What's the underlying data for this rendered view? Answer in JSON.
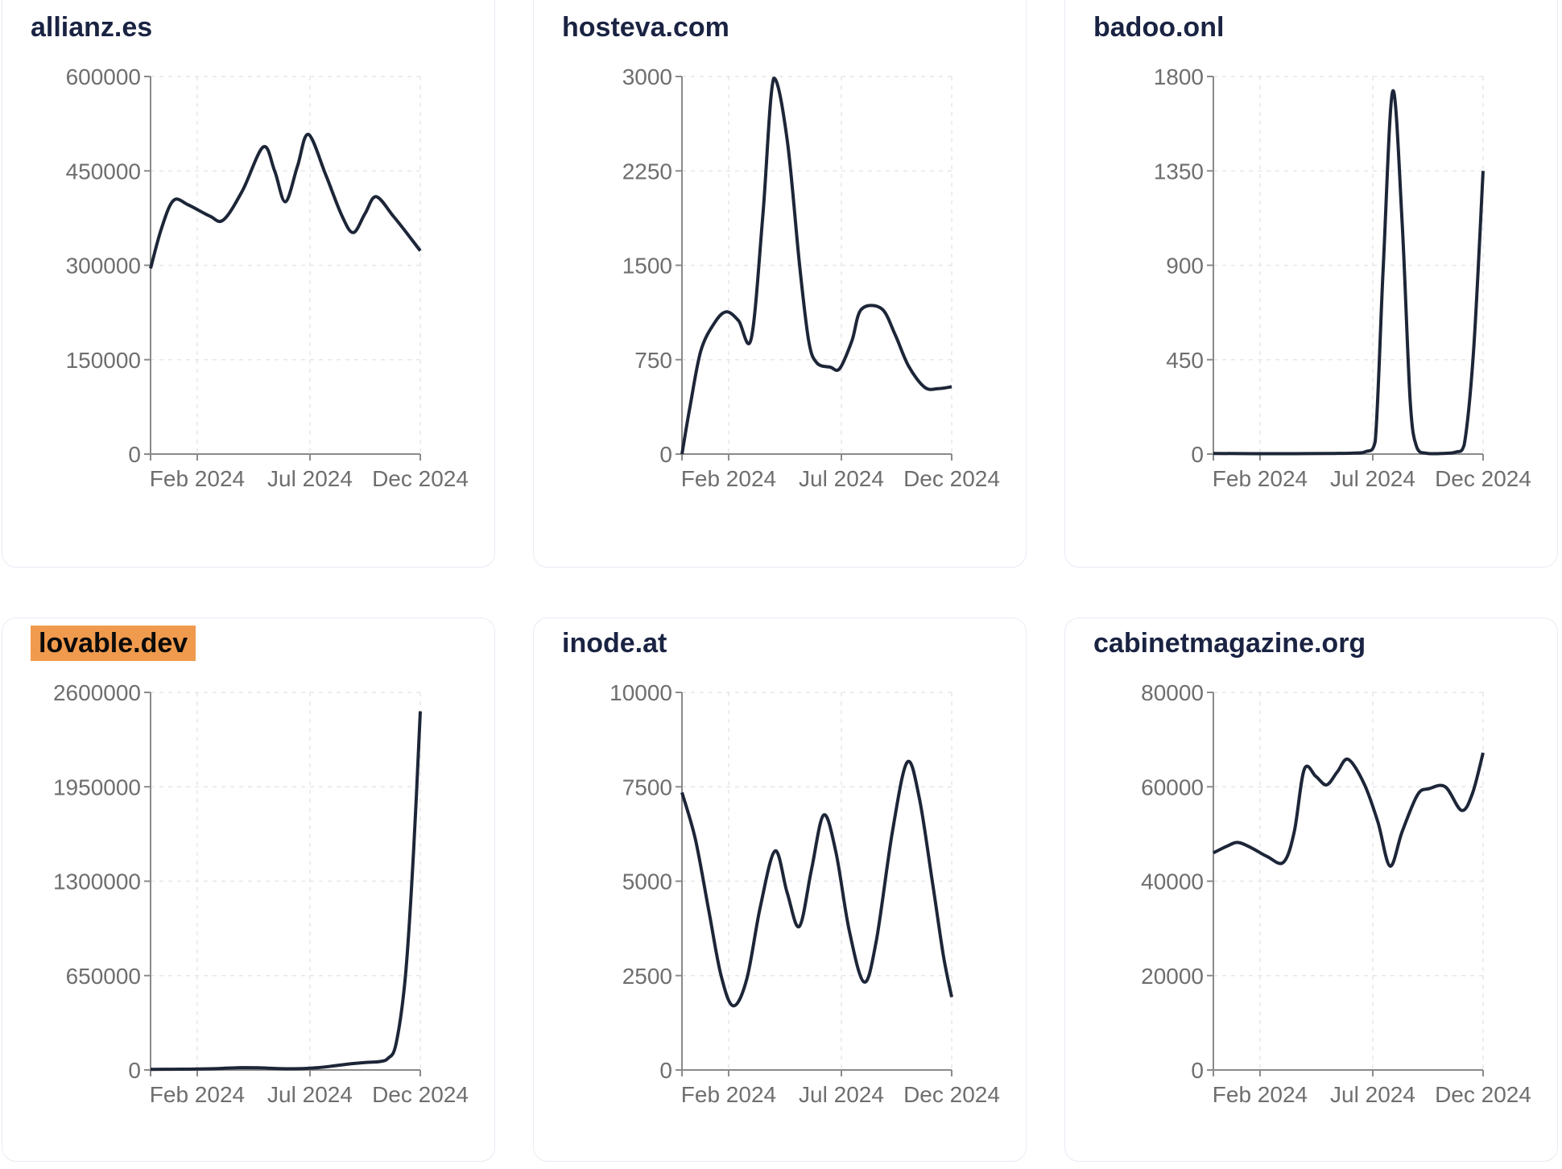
{
  "style": {
    "line_color": "#1d2638",
    "title_color": "#1a2342",
    "highlight_color": "#f09a4d",
    "axis_color": "#8a8a8a",
    "tick_label_color": "#6e6e6e",
    "grid_color": "#e6e7ea",
    "card_border_color": "#e9ebf4",
    "background": "#ffffff"
  },
  "chart_data": [
    {
      "type": "line",
      "title": "allianz.es",
      "highlighted": false,
      "xlabel": "",
      "ylabel": "",
      "x_tick_labels": [
        "Feb 2024",
        "Jul 2024",
        "Dec 2024"
      ],
      "x_tick_positions": [
        0.173,
        0.591,
        1.0
      ],
      "y_tick_labels": [
        "600000",
        "450000",
        "300000",
        "150000",
        "0"
      ],
      "ylim": [
        0,
        600000
      ],
      "grid": "dashed",
      "points": [
        [
          0,
          295000
        ],
        [
          0.04,
          358000
        ],
        [
          0.085,
          403000
        ],
        [
          0.14,
          396000
        ],
        [
          0.22,
          378000
        ],
        [
          0.27,
          372000
        ],
        [
          0.34,
          418000
        ],
        [
          0.418,
          488000
        ],
        [
          0.46,
          450000
        ],
        [
          0.5,
          401000
        ],
        [
          0.545,
          458000
        ],
        [
          0.585,
          508000
        ],
        [
          0.65,
          443000
        ],
        [
          0.71,
          378000
        ],
        [
          0.752,
          352000
        ],
        [
          0.795,
          382000
        ],
        [
          0.836,
          409000
        ],
        [
          0.9,
          378000
        ],
        [
          0.95,
          351000
        ],
        [
          1,
          323000
        ]
      ]
    },
    {
      "type": "line",
      "title": "hosteva.com",
      "highlighted": false,
      "xlabel": "",
      "ylabel": "",
      "x_tick_labels": [
        "Feb 2024",
        "Jul 2024",
        "Dec 2024"
      ],
      "x_tick_positions": [
        0.173,
        0.591,
        1.0
      ],
      "y_tick_labels": [
        "3000",
        "2250",
        "1500",
        "750",
        "0"
      ],
      "ylim": [
        0,
        3000
      ],
      "grid": "dashed",
      "points": [
        [
          0,
          0
        ],
        [
          0.03,
          380
        ],
        [
          0.07,
          820
        ],
        [
          0.12,
          1040
        ],
        [
          0.164,
          1130
        ],
        [
          0.21,
          1060
        ],
        [
          0.257,
          920
        ],
        [
          0.3,
          1900
        ],
        [
          0.34,
          2985
        ],
        [
          0.39,
          2500
        ],
        [
          0.436,
          1500
        ],
        [
          0.47,
          900
        ],
        [
          0.5,
          725
        ],
        [
          0.55,
          690
        ],
        [
          0.585,
          680
        ],
        [
          0.63,
          900
        ],
        [
          0.665,
          1150
        ],
        [
          0.74,
          1155
        ],
        [
          0.79,
          950
        ],
        [
          0.84,
          700
        ],
        [
          0.9,
          530
        ],
        [
          0.95,
          520
        ],
        [
          1,
          535
        ]
      ]
    },
    {
      "type": "line",
      "title": "badoo.onl",
      "highlighted": false,
      "xlabel": "",
      "ylabel": "",
      "x_tick_labels": [
        "Feb 2024",
        "Jul 2024",
        "Dec 2024"
      ],
      "x_tick_positions": [
        0.173,
        0.591,
        1.0
      ],
      "y_tick_labels": [
        "1800",
        "1350",
        "900",
        "450",
        "0"
      ],
      "ylim": [
        0,
        1800
      ],
      "grid": "dashed",
      "points": [
        [
          0,
          3
        ],
        [
          0.15,
          2
        ],
        [
          0.3,
          2
        ],
        [
          0.45,
          3
        ],
        [
          0.52,
          5
        ],
        [
          0.565,
          12
        ],
        [
          0.6,
          60
        ],
        [
          0.63,
          900
        ],
        [
          0.665,
          1730
        ],
        [
          0.7,
          1100
        ],
        [
          0.73,
          250
        ],
        [
          0.755,
          30
        ],
        [
          0.79,
          4
        ],
        [
          0.85,
          3
        ],
        [
          0.9,
          10
        ],
        [
          0.93,
          45
        ],
        [
          0.965,
          500
        ],
        [
          1,
          1350
        ]
      ]
    },
    {
      "type": "line",
      "title": "lovable.dev",
      "highlighted": true,
      "xlabel": "",
      "ylabel": "",
      "x_tick_labels": [
        "Feb 2024",
        "Jul 2024",
        "Dec 2024"
      ],
      "x_tick_positions": [
        0.173,
        0.591,
        1.0
      ],
      "y_tick_labels": [
        "2600000",
        "1950000",
        "1300000",
        "650000",
        "0"
      ],
      "ylim": [
        0,
        2600000
      ],
      "grid": "dashed",
      "points": [
        [
          0,
          4000
        ],
        [
          0.08,
          5000
        ],
        [
          0.16,
          6000
        ],
        [
          0.25,
          10000
        ],
        [
          0.33,
          16000
        ],
        [
          0.4,
          15000
        ],
        [
          0.47,
          10000
        ],
        [
          0.55,
          9000
        ],
        [
          0.62,
          16000
        ],
        [
          0.68,
          28000
        ],
        [
          0.74,
          42000
        ],
        [
          0.8,
          52000
        ],
        [
          0.85,
          58000
        ],
        [
          0.88,
          80000
        ],
        [
          0.91,
          180000
        ],
        [
          0.945,
          650000
        ],
        [
          0.975,
          1500000
        ],
        [
          1,
          2470000
        ]
      ]
    },
    {
      "type": "line",
      "title": "inode.at",
      "highlighted": false,
      "xlabel": "",
      "ylabel": "",
      "x_tick_labels": [
        "Feb 2024",
        "Jul 2024",
        "Dec 2024"
      ],
      "x_tick_positions": [
        0.173,
        0.591,
        1.0
      ],
      "y_tick_labels": [
        "10000",
        "7500",
        "5000",
        "2500",
        "0"
      ],
      "ylim": [
        0,
        10000
      ],
      "grid": "dashed",
      "points": [
        [
          0,
          7350
        ],
        [
          0.05,
          6100
        ],
        [
          0.1,
          4200
        ],
        [
          0.145,
          2500
        ],
        [
          0.19,
          1700
        ],
        [
          0.24,
          2400
        ],
        [
          0.29,
          4300
        ],
        [
          0.345,
          5800
        ],
        [
          0.39,
          4700
        ],
        [
          0.435,
          3800
        ],
        [
          0.48,
          5300
        ],
        [
          0.525,
          6750
        ],
        [
          0.57,
          5800
        ],
        [
          0.62,
          3700
        ],
        [
          0.675,
          2330
        ],
        [
          0.72,
          3400
        ],
        [
          0.78,
          6300
        ],
        [
          0.835,
          8150
        ],
        [
          0.88,
          7200
        ],
        [
          0.93,
          4900
        ],
        [
          0.97,
          3000
        ],
        [
          1,
          1930
        ]
      ]
    },
    {
      "type": "line",
      "title": "cabinetmagazine.org",
      "highlighted": false,
      "xlabel": "",
      "ylabel": "",
      "x_tick_labels": [
        "Feb 2024",
        "Jul 2024",
        "Dec 2024"
      ],
      "x_tick_positions": [
        0.173,
        0.591,
        1.0
      ],
      "y_tick_labels": [
        "80000",
        "60000",
        "40000",
        "20000",
        "0"
      ],
      "ylim": [
        0,
        80000
      ],
      "grid": "dashed",
      "points": [
        [
          0,
          46000
        ],
        [
          0.05,
          47400
        ],
        [
          0.09,
          48200
        ],
        [
          0.14,
          47100
        ],
        [
          0.2,
          45200
        ],
        [
          0.26,
          44000
        ],
        [
          0.3,
          50500
        ],
        [
          0.337,
          63700
        ],
        [
          0.38,
          62200
        ],
        [
          0.42,
          60400
        ],
        [
          0.46,
          63200
        ],
        [
          0.5,
          65800
        ],
        [
          0.56,
          60500
        ],
        [
          0.61,
          52500
        ],
        [
          0.655,
          43200
        ],
        [
          0.7,
          50500
        ],
        [
          0.757,
          58300
        ],
        [
          0.8,
          59600
        ],
        [
          0.86,
          60000
        ],
        [
          0.92,
          55000
        ],
        [
          0.96,
          58500
        ],
        [
          1,
          67200
        ]
      ]
    }
  ]
}
